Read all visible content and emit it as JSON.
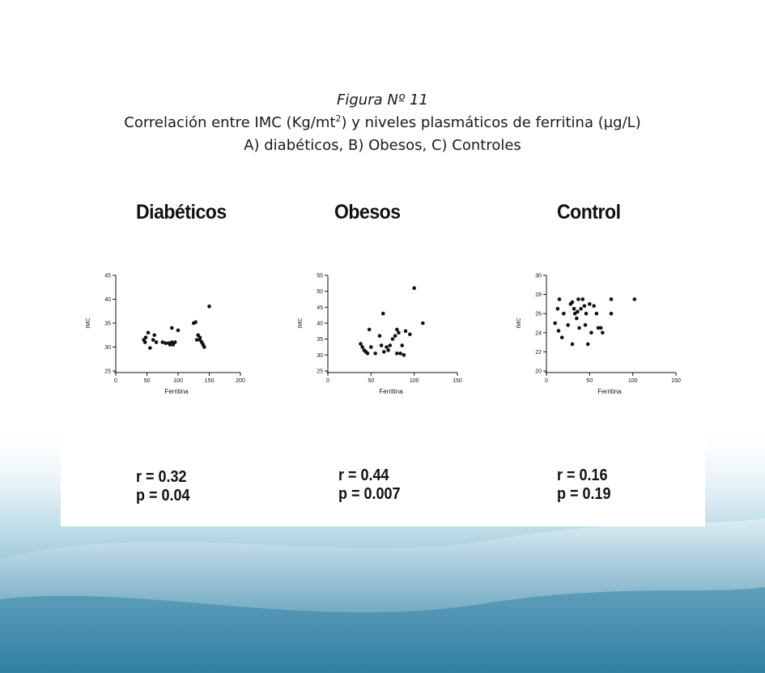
{
  "heading": {
    "figure_label": "Figura Nº 11",
    "line2_before_sup": "Correlación entre IMC (Kg/mt",
    "line2_sup": "2",
    "line2_after_sup": ") y niveles plasmáticos de ferritina (µg/L)",
    "line3": "A) diabéticos, B) Obesos, C) Controles"
  },
  "colors": {
    "background_wave": "#3f8fb0",
    "panel": "#ffffff",
    "points": "#111111"
  },
  "chart_data": [
    {
      "type": "scatter",
      "title": "Diabéticos",
      "xlabel": "Ferritina",
      "ylabel": "IMC",
      "xlim": [
        0,
        200
      ],
      "ylim": [
        25,
        45
      ],
      "xticks": [
        0,
        50,
        100,
        150,
        200
      ],
      "yticks": [
        25,
        30,
        35,
        40,
        45
      ],
      "grid": false,
      "stats": {
        "r": "r = 0.32",
        "p": "p = 0.04"
      },
      "points": [
        [
          45,
          31.5
        ],
        [
          47,
          31.0
        ],
        [
          48,
          32.0
        ],
        [
          52,
          33.0
        ],
        [
          55,
          29.8
        ],
        [
          60,
          31.5
        ],
        [
          62,
          32.5
        ],
        [
          65,
          31.0
        ],
        [
          75,
          31.0
        ],
        [
          80,
          30.8
        ],
        [
          85,
          30.8
        ],
        [
          87,
          30.5
        ],
        [
          90,
          34.0
        ],
        [
          90,
          31.0
        ],
        [
          92,
          30.5
        ],
        [
          95,
          31.0
        ],
        [
          100,
          33.5
        ],
        [
          125,
          35.0
        ],
        [
          128,
          35.2
        ],
        [
          130,
          31.5
        ],
        [
          132,
          32.5
        ],
        [
          135,
          32.0
        ],
        [
          135,
          31.5
        ],
        [
          138,
          31.0
        ],
        [
          140,
          30.5
        ],
        [
          142,
          30.0
        ],
        [
          150,
          38.5
        ]
      ]
    },
    {
      "type": "scatter",
      "title": "Obesos",
      "xlabel": "Ferritina",
      "ylabel": "IMC",
      "xlim": [
        0,
        150
      ],
      "ylim": [
        25,
        55
      ],
      "xticks": [
        0,
        50,
        100,
        150
      ],
      "yticks": [
        25,
        30,
        35,
        40,
        45,
        50,
        55
      ],
      "grid": false,
      "stats": {
        "r": "r = 0.44",
        "p": "p = 0.007"
      },
      "points": [
        [
          38,
          33.5
        ],
        [
          40,
          32.5
        ],
        [
          42,
          31.5
        ],
        [
          44,
          31.0
        ],
        [
          46,
          30.5
        ],
        [
          48,
          38.0
        ],
        [
          50,
          32.5
        ],
        [
          55,
          30.5
        ],
        [
          60,
          36.0
        ],
        [
          62,
          33.0
        ],
        [
          65,
          31.0
        ],
        [
          64,
          43.0
        ],
        [
          68,
          32.5
        ],
        [
          70,
          31.5
        ],
        [
          72,
          33.0
        ],
        [
          75,
          35.0
        ],
        [
          78,
          36.0
        ],
        [
          80,
          38.0
        ],
        [
          82,
          37.0
        ],
        [
          84,
          30.5
        ],
        [
          86,
          33.0
        ],
        [
          88,
          30.0
        ],
        [
          90,
          37.5
        ],
        [
          95,
          36.5
        ],
        [
          100,
          51.0
        ],
        [
          110,
          40.0
        ],
        [
          80,
          30.5
        ]
      ]
    },
    {
      "type": "scatter",
      "title": "Control",
      "xlabel": "Ferritina",
      "ylabel": "IMC",
      "xlim": [
        0,
        150
      ],
      "ylim": [
        20,
        30
      ],
      "xticks": [
        0,
        50,
        100,
        150
      ],
      "yticks": [
        20,
        22,
        24,
        26,
        28,
        30
      ],
      "grid": false,
      "stats": {
        "r": "r = 0.16",
        "p": "p = 0.19"
      },
      "points": [
        [
          10,
          25.0
        ],
        [
          13,
          26.5
        ],
        [
          14,
          24.2
        ],
        [
          15,
          27.5
        ],
        [
          18,
          23.5
        ],
        [
          20,
          26.0
        ],
        [
          25,
          24.8
        ],
        [
          28,
          27.0
        ],
        [
          30,
          27.2
        ],
        [
          30,
          22.8
        ],
        [
          32,
          26.5
        ],
        [
          33,
          26.0
        ],
        [
          35,
          25.5
        ],
        [
          36,
          26.2
        ],
        [
          37,
          27.5
        ],
        [
          38,
          24.5
        ],
        [
          40,
          26.5
        ],
        [
          42,
          27.5
        ],
        [
          44,
          26.8
        ],
        [
          46,
          26.0
        ],
        [
          48,
          22.8
        ],
        [
          50,
          27.0
        ],
        [
          52,
          24.0
        ],
        [
          55,
          26.8
        ],
        [
          58,
          26.0
        ],
        [
          60,
          24.5
        ],
        [
          63,
          24.5
        ],
        [
          65,
          24.0
        ],
        [
          75,
          27.5
        ],
        [
          75,
          26.0
        ],
        [
          102,
          27.5
        ],
        [
          45,
          24.8
        ]
      ]
    }
  ]
}
